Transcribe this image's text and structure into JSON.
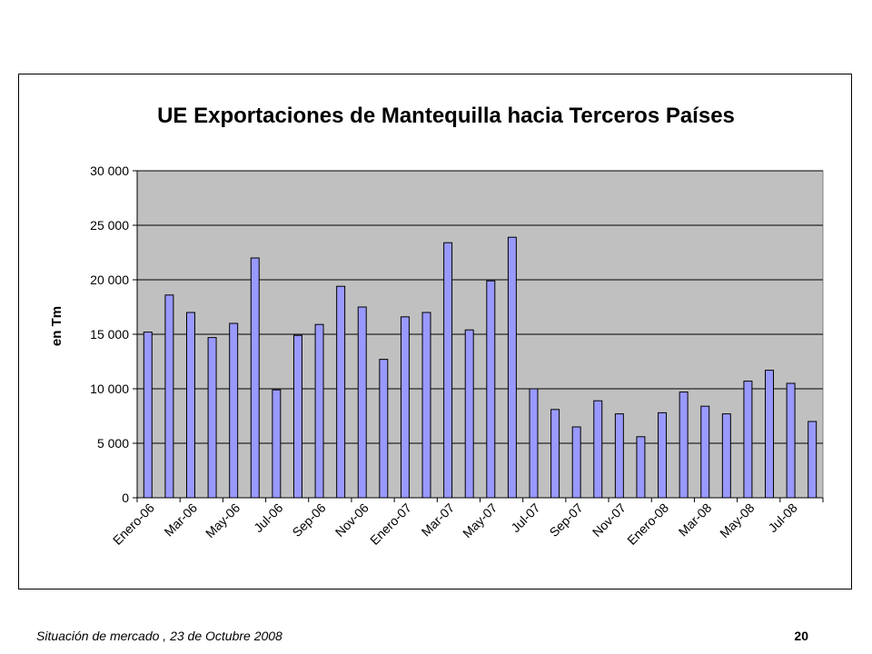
{
  "chart_data": {
    "type": "bar",
    "title": "UE Exportaciones de Mantequilla hacia Terceros Países",
    "xlabel": "",
    "ylabel": "en Tm",
    "ylim": [
      0,
      30000
    ],
    "y_ticks": [
      "0",
      "5 000",
      "10 000",
      "15 000",
      "20 000",
      "25 000",
      "30 000"
    ],
    "y_tick_values": [
      0,
      5000,
      10000,
      15000,
      20000,
      25000,
      30000
    ],
    "categories": [
      "Enero-06",
      "Feb-06",
      "Mar-06",
      "Abr-06",
      "May-06",
      "Jun-06",
      "Jul-06",
      "Ago-06",
      "Sep-06",
      "Oct-06",
      "Nov-06",
      "Dic-06",
      "Enero-07",
      "Feb-07",
      "Mar-07",
      "Abr-07",
      "May-07",
      "Jun-07",
      "Jul-07",
      "Ago-07",
      "Sep-07",
      "Oct-07",
      "Nov-07",
      "Dic-07",
      "Enero-08",
      "Feb-08",
      "Mar-08",
      "Abr-08",
      "May-08",
      "Jun-08",
      "Jul-08",
      "Ago-08"
    ],
    "x_tick_labels": [
      "Enero-06",
      "Mar-06",
      "May-06",
      "Jul-06",
      "Sep-06",
      "Nov-06",
      "Enero-07",
      "Mar-07",
      "May-07",
      "Jul-07",
      "Sep-07",
      "Nov-07",
      "Enero-08",
      "Mar-08",
      "May-08",
      "Jul-08"
    ],
    "values": [
      15200,
      18600,
      17000,
      14700,
      16000,
      22000,
      9900,
      14900,
      15900,
      19400,
      17500,
      12700,
      16600,
      17000,
      23400,
      15400,
      19900,
      23900,
      10000,
      8100,
      6500,
      8900,
      7700,
      5600,
      7800,
      9700,
      8400,
      7700,
      10700,
      11700,
      10500,
      7000
    ],
    "grid": true,
    "legend": "none",
    "colors": {
      "bar_fill": "#9999ff",
      "bar_stroke": "#000000",
      "plot_bg": "#c0c0c0"
    }
  },
  "footer": {
    "caption": "Situación de mercado , 23 de  Octubre 2008",
    "page_number": "20"
  }
}
